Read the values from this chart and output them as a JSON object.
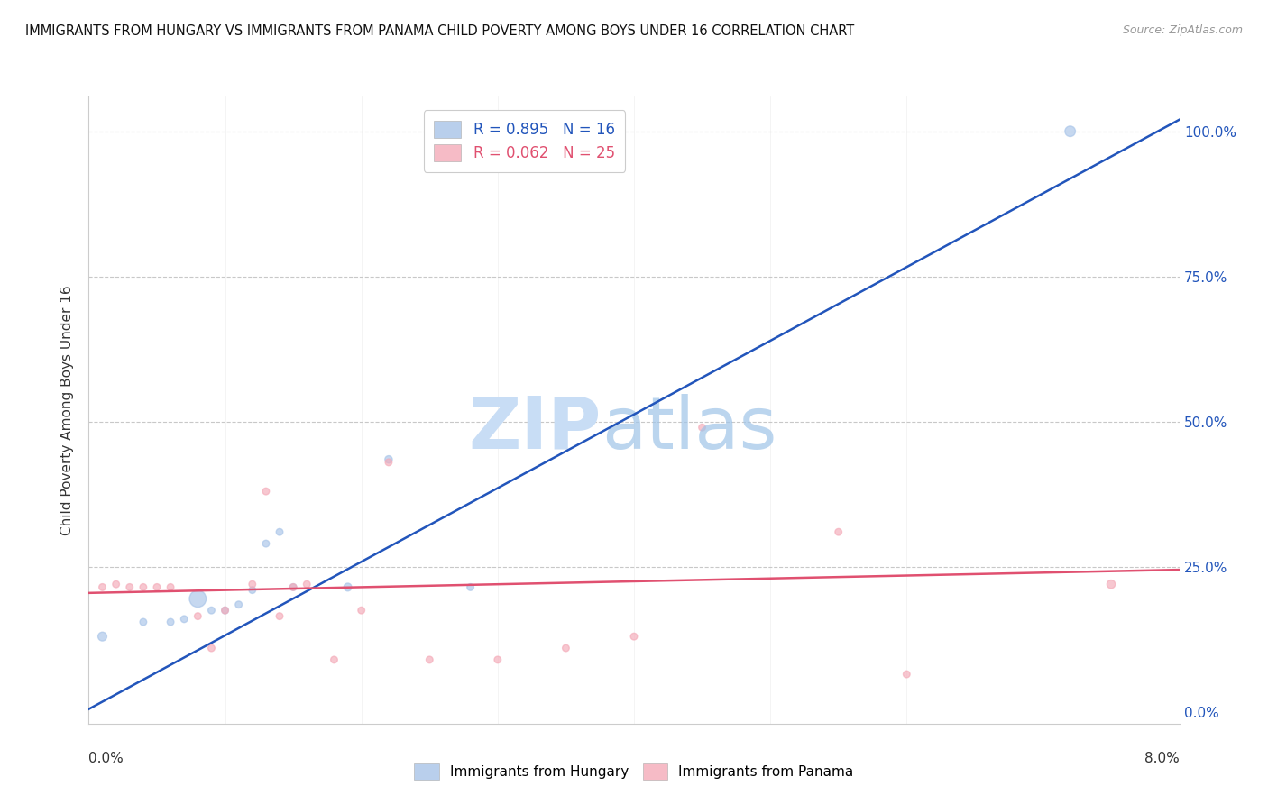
{
  "title": "IMMIGRANTS FROM HUNGARY VS IMMIGRANTS FROM PANAMA CHILD POVERTY AMONG BOYS UNDER 16 CORRELATION CHART",
  "source": "Source: ZipAtlas.com",
  "ylabel": "Child Poverty Among Boys Under 16",
  "ytick_labels": [
    "0.0%",
    "25.0%",
    "50.0%",
    "75.0%",
    "100.0%"
  ],
  "ytick_values": [
    0.0,
    0.25,
    0.5,
    0.75,
    1.0
  ],
  "xlim": [
    0.0,
    0.08
  ],
  "ylim": [
    -0.02,
    1.06
  ],
  "hungary_R": 0.895,
  "hungary_N": 16,
  "panama_R": 0.062,
  "panama_N": 25,
  "hungary_color": "#a8c4e8",
  "panama_color": "#f4aab8",
  "hungary_line_color": "#2255bb",
  "panama_line_color": "#e05070",
  "hungary_x": [
    0.001,
    0.004,
    0.006,
    0.007,
    0.008,
    0.009,
    0.01,
    0.011,
    0.012,
    0.013,
    0.014,
    0.015,
    0.019,
    0.022,
    0.028,
    0.072
  ],
  "hungary_y": [
    0.13,
    0.155,
    0.155,
    0.16,
    0.195,
    0.175,
    0.175,
    0.185,
    0.21,
    0.29,
    0.31,
    0.215,
    0.215,
    0.435,
    0.215,
    1.0
  ],
  "hungary_size": [
    50,
    30,
    30,
    30,
    180,
    30,
    30,
    30,
    30,
    30,
    30,
    30,
    40,
    35,
    30,
    70
  ],
  "panama_x": [
    0.001,
    0.002,
    0.003,
    0.004,
    0.005,
    0.006,
    0.008,
    0.009,
    0.01,
    0.012,
    0.013,
    0.014,
    0.015,
    0.016,
    0.018,
    0.02,
    0.022,
    0.025,
    0.03,
    0.035,
    0.04,
    0.045,
    0.055,
    0.06,
    0.075
  ],
  "panama_y": [
    0.215,
    0.22,
    0.215,
    0.215,
    0.215,
    0.215,
    0.165,
    0.11,
    0.175,
    0.22,
    0.38,
    0.165,
    0.215,
    0.22,
    0.09,
    0.175,
    0.43,
    0.09,
    0.09,
    0.11,
    0.13,
    0.49,
    0.31,
    0.065,
    0.22
  ],
  "panama_size": [
    30,
    30,
    30,
    30,
    30,
    30,
    30,
    30,
    30,
    30,
    30,
    30,
    30,
    30,
    30,
    30,
    30,
    30,
    30,
    30,
    30,
    30,
    30,
    30,
    45
  ],
  "hungary_line_x": [
    0.0,
    0.08
  ],
  "hungary_line_y": [
    0.005,
    1.02
  ],
  "panama_line_x": [
    0.0,
    0.08
  ],
  "panama_line_y": [
    0.205,
    0.245
  ],
  "xticks": [
    0.0,
    0.01,
    0.02,
    0.03,
    0.04,
    0.05,
    0.06,
    0.07,
    0.08
  ],
  "hgrid_values": [
    0.25,
    0.5,
    0.75,
    1.0
  ]
}
